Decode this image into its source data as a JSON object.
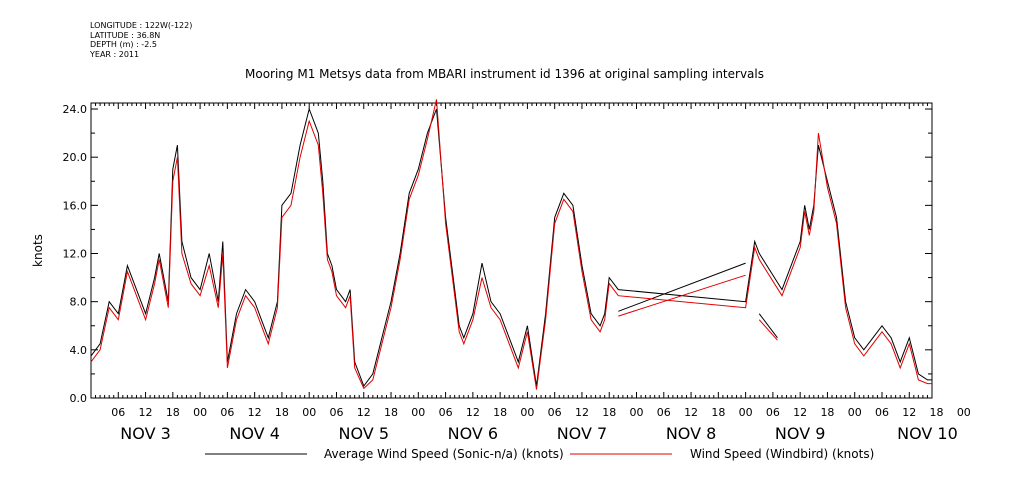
{
  "header": {
    "meta_lines": [
      "LONGITUDE : 122W(-122)",
      "LATITUDE : 36.8N",
      "DEPTH (m) : -2.5",
      "YEAR : 2011"
    ],
    "title": "Mooring M1 Metsys data from MBARI instrument id 1396 at original sampling intervals"
  },
  "chart_data": {
    "type": "line",
    "title": "Mooring M1 Metsys data from MBARI instrument id 1396 at original sampling intervals",
    "ylabel": "knots",
    "xlabel": "",
    "xlim_hours": [
      0,
      185
    ],
    "ylim": [
      0,
      24.5
    ],
    "yticks": [
      "0.0",
      "4.0",
      "8.0",
      "12.0",
      "16.0",
      "20.0",
      "24.0"
    ],
    "xtick_hour_labels": [
      "06",
      "12",
      "18",
      "00",
      "06",
      "12",
      "18",
      "00",
      "06",
      "12",
      "18",
      "00",
      "06",
      "12",
      "18",
      "00",
      "06",
      "12",
      "18",
      "00",
      "06",
      "12",
      "18",
      "00",
      "06",
      "12",
      "18",
      "00",
      "06",
      "12",
      "18",
      "00"
    ],
    "day_labels": [
      "NOV  3",
      "NOV  4",
      "NOV  5",
      "NOV  6",
      "NOV  7",
      "NOV  8",
      "NOV  9",
      "NOV 10"
    ],
    "legend": [
      {
        "name": "Average Wind Speed (Sonic-n/a) (knots)",
        "color": "#000000"
      },
      {
        "name": "Wind Speed (Windbird) (knots)",
        "color": "#e00000"
      }
    ],
    "series": [
      {
        "name": "Average Wind Speed (Sonic-n/a) (knots)",
        "color": "#000000",
        "x": [
          0,
          2,
          4,
          6,
          8,
          10,
          12,
          14,
          15,
          17,
          18,
          19,
          20,
          22,
          24,
          26,
          28,
          29,
          30,
          32,
          34,
          36,
          38,
          39,
          41,
          42,
          44,
          46,
          48,
          50,
          51,
          52,
          53,
          54,
          56,
          57,
          58,
          60,
          62,
          64,
          66,
          68,
          70,
          72,
          74,
          76,
          78,
          80,
          81,
          82,
          84,
          86,
          88,
          90,
          92,
          94,
          96,
          98,
          100,
          102,
          104,
          106,
          108,
          110,
          112,
          113,
          114,
          116,
          144,
          146,
          147,
          148,
          150,
          152,
          154,
          156,
          157,
          158,
          159,
          160,
          162,
          164,
          166,
          168,
          170,
          172,
          174,
          176,
          178,
          180,
          182,
          184,
          185
        ],
        "y": [
          3.5,
          4.5,
          8,
          7,
          11,
          9,
          7,
          10,
          12,
          8,
          19,
          21,
          13,
          10,
          9,
          12,
          8,
          13,
          3,
          7,
          9,
          8,
          6,
          5,
          8,
          16,
          17,
          21,
          24,
          22,
          18,
          12,
          11,
          9,
          8,
          9,
          3,
          1,
          2,
          5,
          8,
          12,
          17,
          19,
          22,
          24,
          15,
          9,
          6,
          5,
          7,
          11.2,
          8,
          7,
          5,
          3,
          6,
          1,
          7,
          15,
          17,
          16,
          11,
          7,
          6,
          7,
          10,
          9,
          8,
          13,
          12,
          6,
          3,
          9,
          11,
          13,
          16,
          14,
          16,
          21,
          18,
          15,
          8,
          5,
          4,
          5,
          6,
          5,
          3,
          5,
          2,
          1.5,
          1.5
        ],
        "gap_segments": [
          [
            116,
            7.2,
            144,
            11.2
          ],
          [
            147,
            7.0,
            151,
            5.0
          ]
        ]
      },
      {
        "name": "Wind Speed (Windbird) (knots)",
        "color": "#e00000",
        "x": [
          0,
          2,
          4,
          6,
          8,
          10,
          12,
          14,
          15,
          17,
          18,
          19,
          20,
          22,
          24,
          26,
          28,
          29,
          30,
          32,
          34,
          36,
          38,
          39,
          41,
          42,
          44,
          46,
          48,
          50,
          51,
          52,
          53,
          54,
          56,
          57,
          58,
          60,
          62,
          64,
          66,
          68,
          70,
          72,
          74,
          76,
          78,
          80,
          81,
          82,
          84,
          86,
          88,
          90,
          92,
          94,
          96,
          98,
          100,
          102,
          104,
          106,
          108,
          110,
          112,
          113,
          114,
          116,
          144,
          146,
          147,
          148,
          150,
          152,
          154,
          156,
          157,
          158,
          159,
          160,
          162,
          164,
          166,
          168,
          170,
          172,
          174,
          176,
          178,
          180,
          182,
          184,
          185
        ],
        "y": [
          3,
          4,
          7.5,
          6.5,
          10.5,
          8.5,
          6.5,
          9.5,
          11.5,
          7.5,
          18,
          20,
          12,
          9.5,
          8.5,
          11,
          7.5,
          12,
          2.5,
          6.5,
          8.5,
          7.5,
          5.5,
          4.5,
          7.5,
          15,
          16,
          20,
          23,
          21,
          17,
          11.5,
          10.5,
          8.5,
          7.5,
          8.5,
          2.5,
          0.8,
          1.5,
          4.5,
          7.5,
          11.5,
          16.5,
          18.5,
          21.5,
          24.8,
          14.5,
          8.5,
          5.5,
          4.5,
          6.5,
          10,
          7.5,
          6.5,
          4.5,
          2.5,
          5.5,
          0.7,
          6.5,
          14.5,
          16.5,
          15.5,
          10.5,
          6.5,
          5.5,
          6.5,
          9.5,
          8.5,
          7.5,
          12.5,
          11.5,
          5.5,
          2.5,
          8.5,
          10.5,
          12.5,
          15.5,
          13.5,
          15.5,
          22,
          17.5,
          14.5,
          7.5,
          4.5,
          3.5,
          4.5,
          5.5,
          4.5,
          2.5,
          4.5,
          1.5,
          1.2,
          1.2
        ],
        "gap_segments": [
          [
            116,
            6.8,
            144,
            10.2
          ],
          [
            147,
            6.5,
            151,
            4.8
          ]
        ]
      }
    ]
  }
}
